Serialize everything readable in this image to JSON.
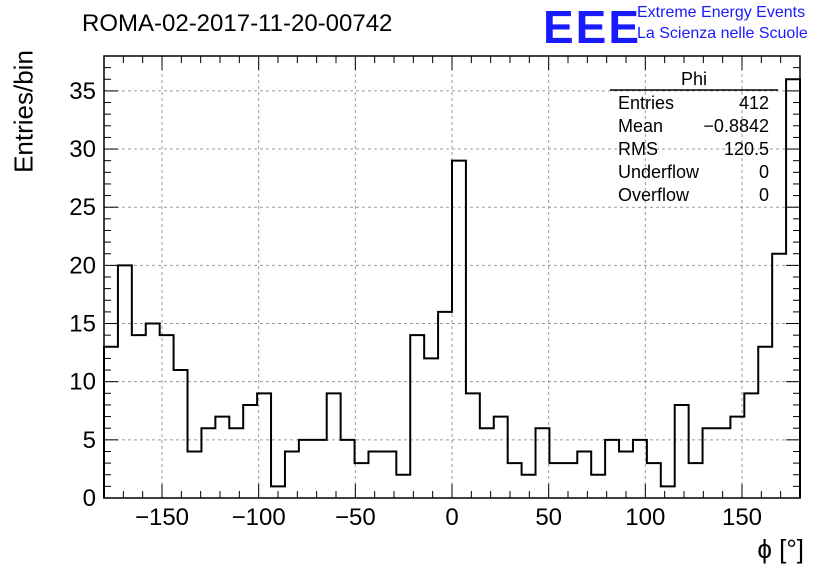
{
  "header": {
    "title": "ROMA-02-2017-11-20-00742",
    "logo_text": "EEE",
    "logo_line1": "Extreme Energy Events",
    "logo_line2": "La Scienza nelle Scuole"
  },
  "stats": {
    "name": "Phi",
    "rows": [
      {
        "label": "Entries",
        "value": "412"
      },
      {
        "label": "Mean",
        "value": "−0.8842"
      },
      {
        "label": "RMS",
        "value": "120.5"
      },
      {
        "label": "Underflow",
        "value": "0"
      },
      {
        "label": "Overflow",
        "value": "0"
      }
    ]
  },
  "colors": {
    "logo": "#1a1aff",
    "line": "#000000",
    "grid": "#9a9a9a"
  },
  "chart_data": {
    "type": "histogram",
    "xlabel": "ϕ [°]",
    "ylabel": "Entries/bin",
    "xlim": [
      -180,
      180
    ],
    "ylim": [
      0,
      38
    ],
    "bin_width": 7.2,
    "x_ticks": [
      -150,
      -100,
      -50,
      0,
      50,
      100,
      150
    ],
    "x_tick_labels": [
      "−150",
      "−100",
      "−50",
      "0",
      "50",
      "100",
      "150"
    ],
    "y_ticks": [
      0,
      5,
      10,
      15,
      20,
      25,
      30,
      35
    ],
    "y_tick_labels": [
      "0",
      "5",
      "10",
      "15",
      "20",
      "25",
      "30",
      "35"
    ],
    "grid": true,
    "values": [
      13,
      20,
      14,
      15,
      14,
      11,
      4,
      6,
      7,
      6,
      8,
      9,
      1,
      4,
      5,
      5,
      9,
      5,
      3,
      4,
      4,
      2,
      14,
      12,
      16,
      29,
      9,
      6,
      7,
      3,
      2,
      6,
      3,
      3,
      4,
      2,
      5,
      4,
      5,
      3,
      1,
      8,
      3,
      6,
      6,
      7,
      9,
      13,
      21,
      36
    ]
  }
}
